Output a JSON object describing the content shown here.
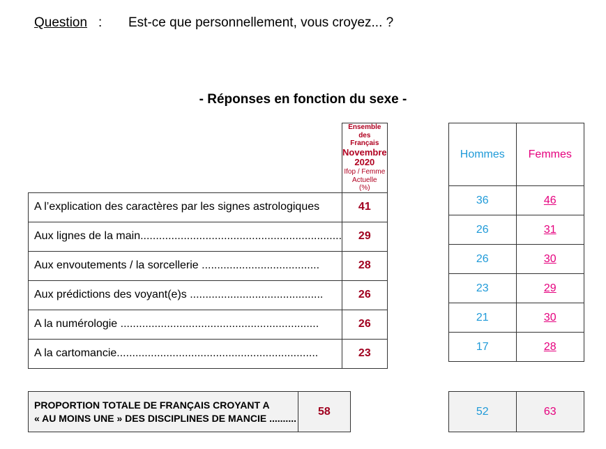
{
  "question": {
    "label": "Question",
    "colon": ":",
    "text": "Est-ce que personnellement, vous croyez... ?"
  },
  "subtitle": "- Réponses en fonction du sexe -",
  "header": {
    "ensemble_line1": "Ensemble des",
    "ensemble_line2": "Français",
    "ensemble_line3": "Novembre 2020",
    "ensemble_line4": "Ifop / Femme Actuelle",
    "ensemble_line5": "(%)",
    "hommes": "Hommes",
    "femmes": "Femmes"
  },
  "rows": [
    {
      "label": "A l’explication des caractères par les signes astrologiques",
      "ensemble": "41",
      "hommes": "36",
      "femmes": "46"
    },
    {
      "label": "Aux lignes de la main.................................................................",
      "ensemble": "29",
      "hommes": "26",
      "femmes": "31"
    },
    {
      "label": "Aux envoutements / la sorcellerie ......................................",
      "ensemble": "28",
      "hommes": "26",
      "femmes": "30"
    },
    {
      "label": "Aux prédictions des voyant(e)s ...........................................",
      "ensemble": "26",
      "hommes": "23",
      "femmes": "29"
    },
    {
      "label": "A la numérologie ................................................................",
      "ensemble": "26",
      "hommes": "21",
      "femmes": "30"
    },
    {
      "label": "A la cartomancie.................................................................",
      "ensemble": "23",
      "hommes": "17",
      "femmes": "28"
    }
  ],
  "total": {
    "label_line1": "PROPORTION TOTALE DE FRANÇAIS CROYANT A",
    "label_line2": "« AU MOINS UNE » DES DISCIPLINES DE MANCIE ..........",
    "ensemble": "58",
    "hommes": "52",
    "femmes": "63"
  }
}
